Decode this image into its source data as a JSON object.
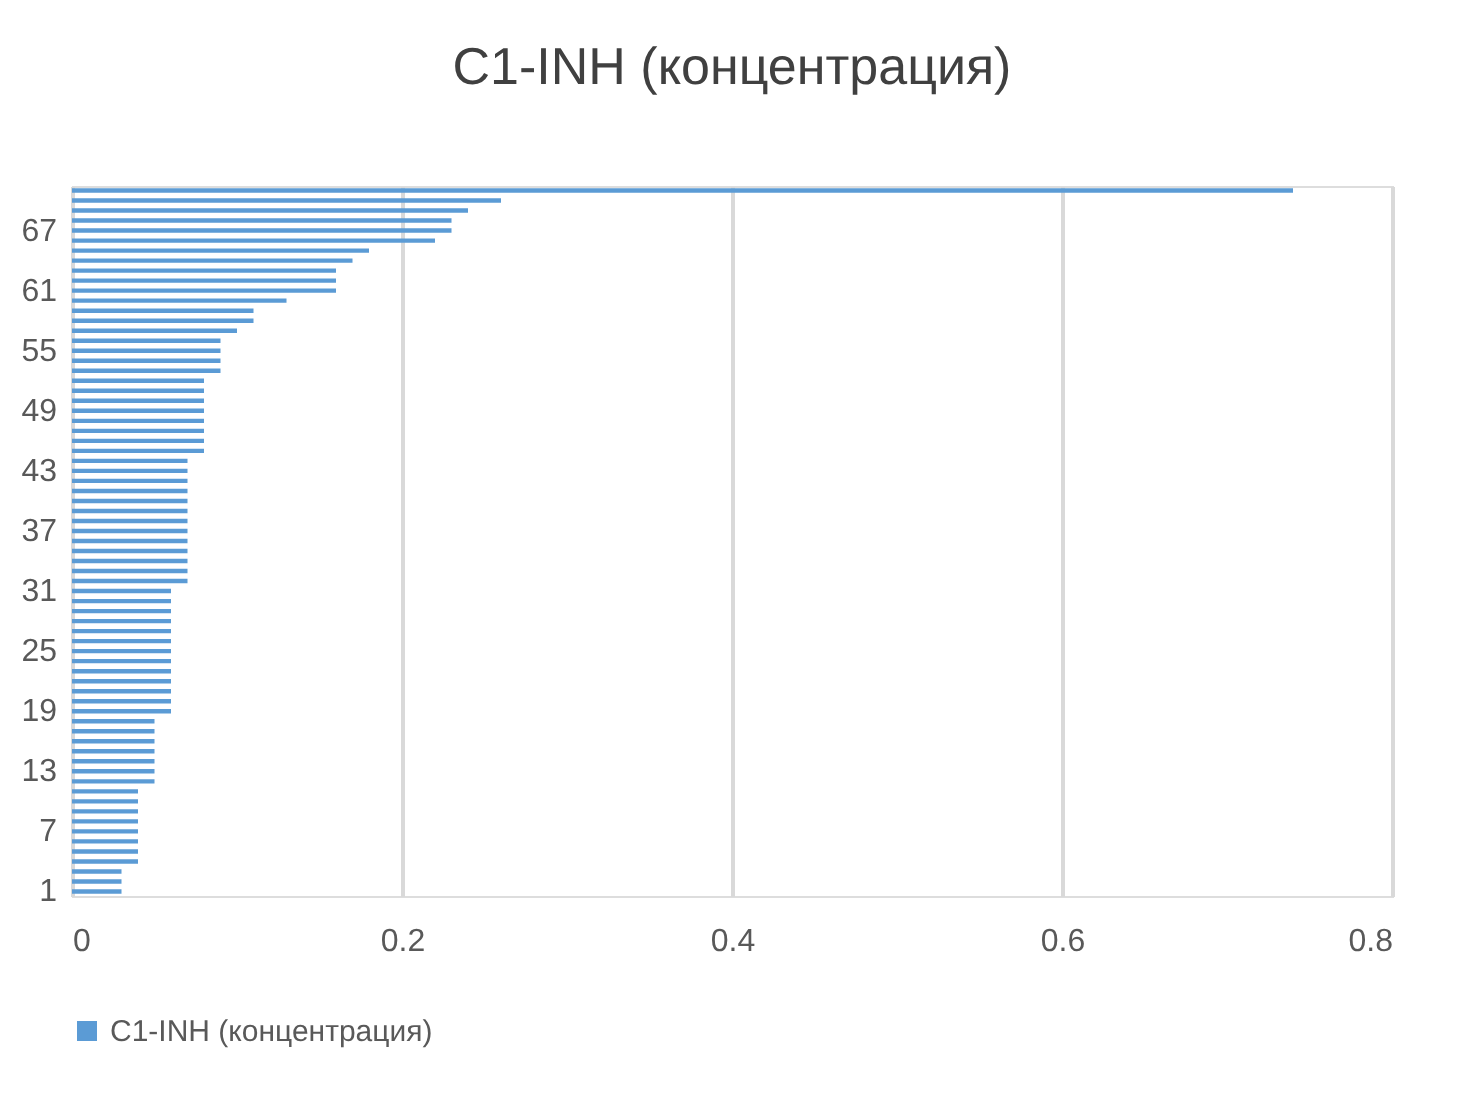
{
  "chart_data": {
    "type": "bar",
    "orientation": "horizontal",
    "title": "C1-INH (концентрация)",
    "categories": [
      null,
      null,
      null,
      null,
      "67",
      null,
      null,
      null,
      null,
      null,
      "61",
      null,
      null,
      null,
      null,
      null,
      "55",
      null,
      null,
      null,
      null,
      null,
      "49",
      null,
      null,
      null,
      null,
      null,
      "43",
      null,
      null,
      null,
      null,
      null,
      "37",
      null,
      null,
      null,
      null,
      null,
      "31",
      null,
      null,
      null,
      null,
      null,
      "25",
      null,
      null,
      null,
      null,
      null,
      "19",
      null,
      null,
      null,
      null,
      null,
      "13",
      null,
      null,
      null,
      null,
      null,
      "7",
      null,
      null,
      null,
      null,
      null,
      "1"
    ],
    "series": [
      {
        "name": "C1-INH (концентрация)",
        "color": "#5b9bd5",
        "values": [
          0.74,
          0.26,
          0.24,
          0.23,
          0.23,
          0.22,
          0.18,
          0.17,
          0.16,
          0.16,
          0.16,
          0.13,
          0.11,
          0.11,
          0.1,
          0.09,
          0.09,
          0.09,
          0.09,
          0.08,
          0.08,
          0.08,
          0.08,
          0.08,
          0.08,
          0.08,
          0.08,
          0.07,
          0.07,
          0.07,
          0.07,
          0.07,
          0.07,
          0.07,
          0.07,
          0.07,
          0.07,
          0.07,
          0.07,
          0.07,
          0.06,
          0.06,
          0.06,
          0.06,
          0.06,
          0.06,
          0.06,
          0.06,
          0.06,
          0.06,
          0.06,
          0.06,
          0.06,
          0.05,
          0.05,
          0.05,
          0.05,
          0.05,
          0.05,
          0.05,
          0.04,
          0.04,
          0.04,
          0.04,
          0.04,
          0.04,
          0.04,
          0.04,
          0.03,
          0.03,
          0.03
        ]
      }
    ],
    "xlim": [
      0,
      0.8
    ],
    "xticks": [
      0,
      0.2,
      0.4,
      0.6,
      0.8
    ],
    "grid": "x",
    "legend": "bottom"
  }
}
